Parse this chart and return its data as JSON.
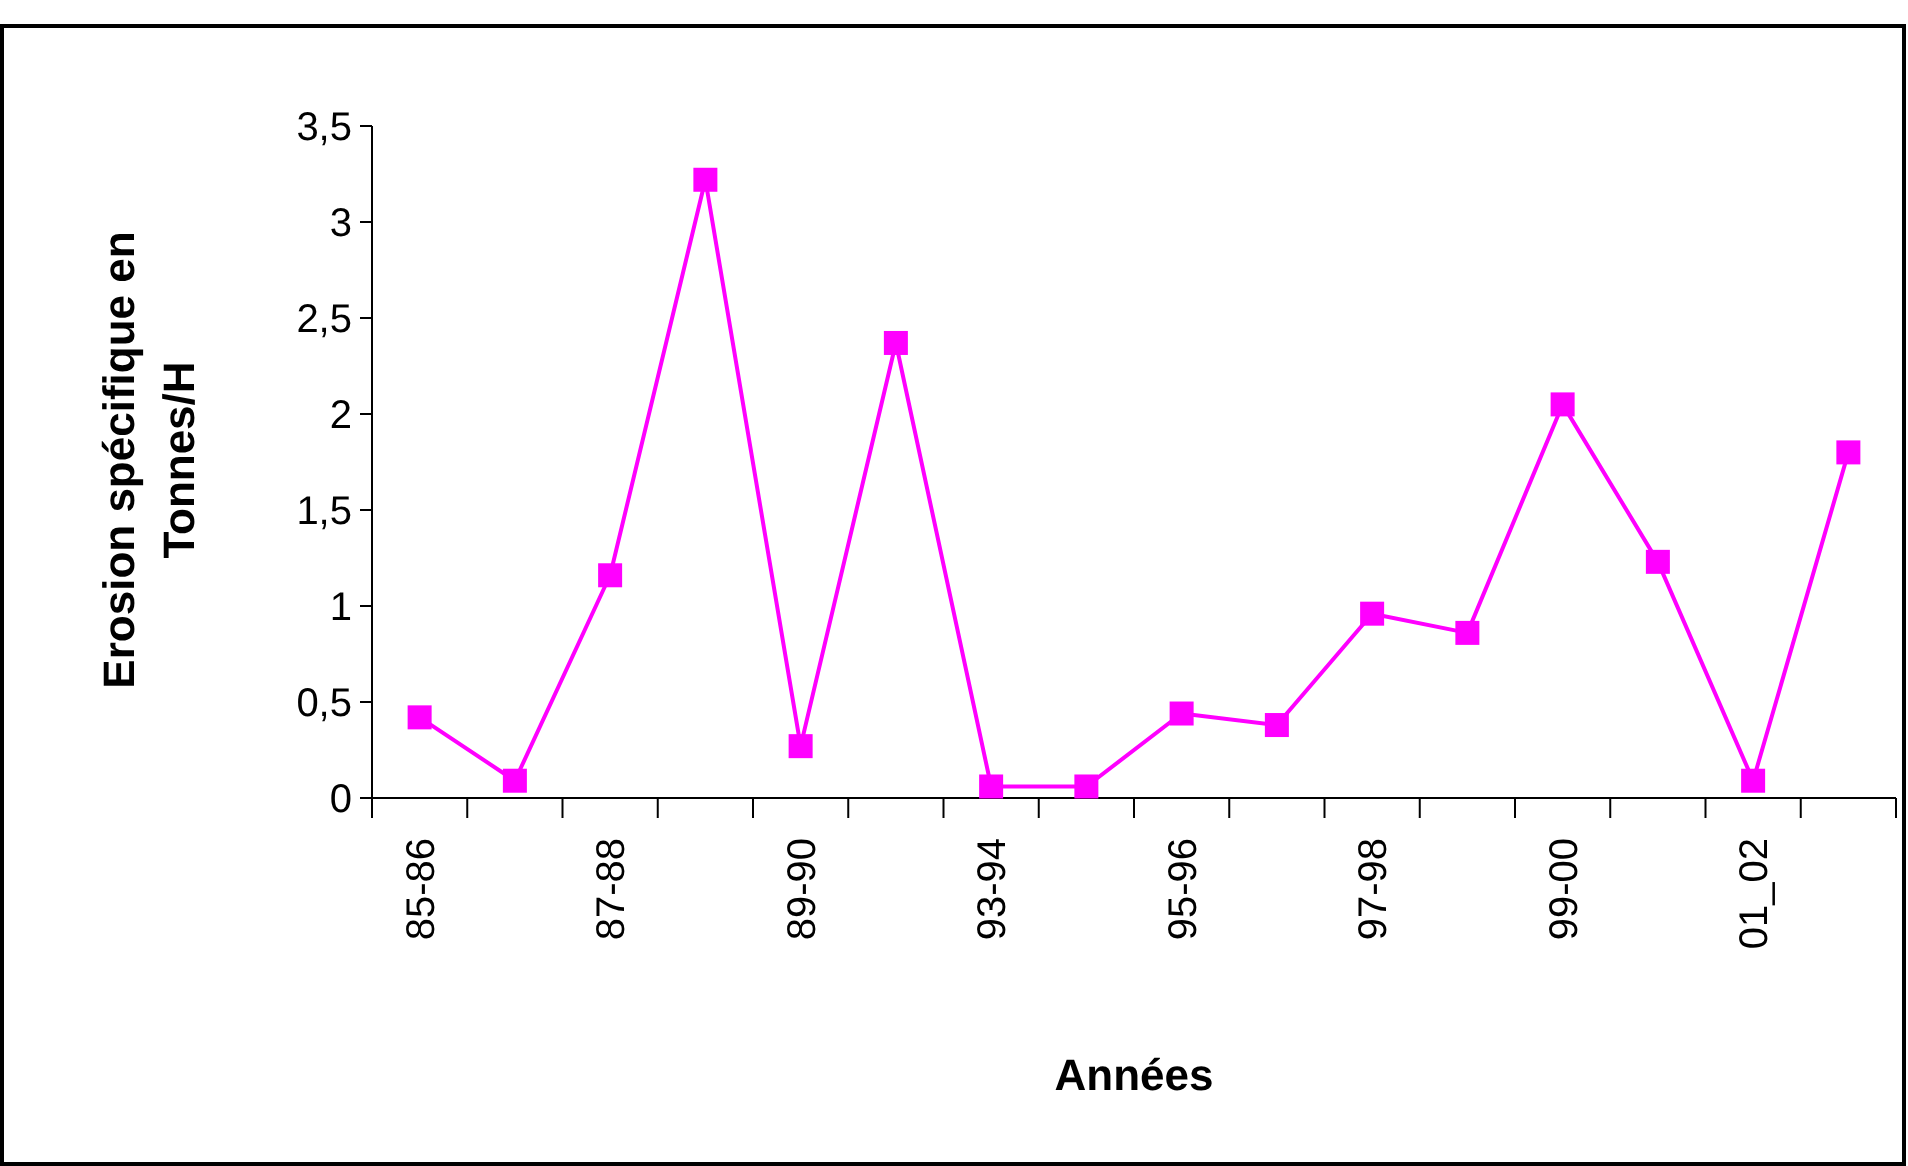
{
  "chart_data": {
    "type": "line",
    "xlabel": "Années",
    "ylabel": "Erosion spécifique en Tonnes/H",
    "categories": [
      "85-86",
      null,
      "87-88",
      null,
      "89-90",
      null,
      "93-94",
      null,
      "95-96",
      null,
      "97-98",
      null,
      "99-00",
      null,
      "01_02",
      null
    ],
    "series": [
      {
        "color": "#ff00ff",
        "values": [
          0.42,
          0.09,
          1.16,
          3.22,
          0.27,
          2.37,
          0.06,
          0.06,
          0.44,
          0.38,
          0.96,
          0.86,
          2.05,
          1.23,
          0.09,
          1.8
        ]
      }
    ],
    "ylim": [
      0,
      3.5
    ],
    "yticks": [
      {
        "value": 0,
        "label": "0"
      },
      {
        "value": 0.5,
        "label": "0,5"
      },
      {
        "value": 1,
        "label": "1"
      },
      {
        "value": 1.5,
        "label": "1,5"
      },
      {
        "value": 2,
        "label": "2"
      },
      {
        "value": 2.5,
        "label": "2,5"
      },
      {
        "value": 3,
        "label": "3"
      },
      {
        "value": 3.5,
        "label": "3,5"
      }
    ],
    "grid": false,
    "marker": "square",
    "line_style": "solid"
  }
}
